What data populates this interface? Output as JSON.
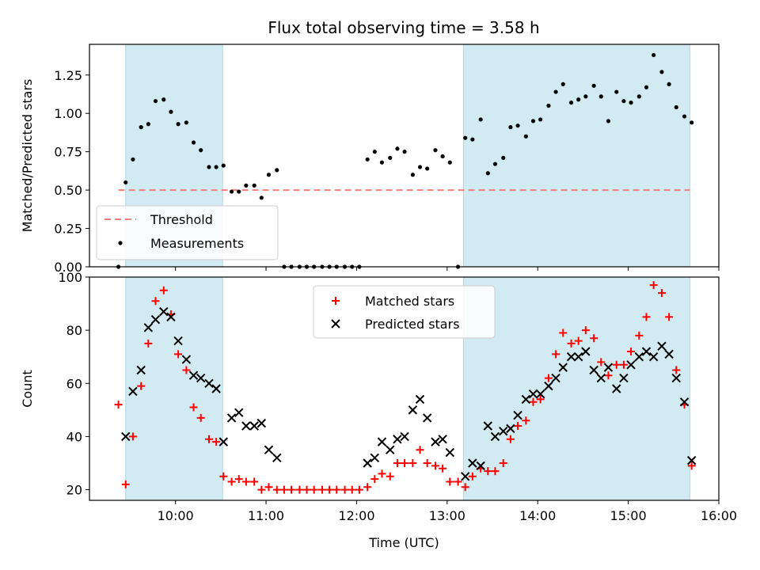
{
  "title": "Flux total observing time = 3.58 h",
  "colors": {
    "shade": "#add8e6",
    "threshold": "#f08080",
    "measurement": "#000000",
    "matched": "#ff0000",
    "predicted": "#000000"
  },
  "chart_data": [
    {
      "type": "scatter",
      "ylabel": "Matched/Predicted stars",
      "ylim": [
        0,
        1.45
      ],
      "xlim": [
        9.05,
        16.0
      ],
      "yticks": [
        0,
        0.25,
        0.5,
        0.75,
        1.0,
        1.25
      ],
      "ytick_labels": [
        "0.00",
        "0.25",
        "0.50",
        "0.75",
        "1.00",
        "1.25"
      ],
      "shaded_intervals": [
        [
          9.45,
          10.52
        ],
        [
          13.18,
          15.68
        ]
      ],
      "threshold": {
        "name": "Threshold",
        "value": 0.5,
        "x_range": [
          9.37,
          15.68
        ]
      },
      "legend": {
        "placement": "lower-left",
        "entries": [
          "Threshold",
          "Measurements"
        ]
      },
      "series": [
        {
          "name": "Measurements",
          "x": [
            9.37,
            9.45,
            9.53,
            9.62,
            9.7,
            9.78,
            9.87,
            9.95,
            10.03,
            10.12,
            10.2,
            10.28,
            10.37,
            10.45,
            10.53,
            10.62,
            10.7,
            10.78,
            10.87,
            10.95,
            11.03,
            11.12,
            11.2,
            11.28,
            11.37,
            11.45,
            11.53,
            11.62,
            11.7,
            11.78,
            11.87,
            11.95,
            12.03,
            12.12,
            12.2,
            12.28,
            12.37,
            12.45,
            12.53,
            12.62,
            12.7,
            12.78,
            12.87,
            12.95,
            13.03,
            13.12,
            13.2,
            13.28,
            13.37,
            13.45,
            13.53,
            13.62,
            13.7,
            13.78,
            13.87,
            13.95,
            14.03,
            14.12,
            14.2,
            14.28,
            14.37,
            14.45,
            14.53,
            14.62,
            14.7,
            14.78,
            14.87,
            14.95,
            15.03,
            15.12,
            15.2,
            15.28,
            15.37,
            15.45,
            15.53,
            15.62,
            15.7
          ],
          "y": [
            0.0,
            0.55,
            0.7,
            0.91,
            0.93,
            1.08,
            1.09,
            1.01,
            0.93,
            0.94,
            0.81,
            0.76,
            0.65,
            0.65,
            0.66,
            0.49,
            0.49,
            0.53,
            0.53,
            0.45,
            0.6,
            0.63,
            0.0,
            0.0,
            0.0,
            0.0,
            0.0,
            0.0,
            0.0,
            0.0,
            0.0,
            0.0,
            0.0,
            0.7,
            0.75,
            0.68,
            0.71,
            0.77,
            0.75,
            0.6,
            0.65,
            0.64,
            0.76,
            0.72,
            0.68,
            0.0,
            0.84,
            0.83,
            0.96,
            0.61,
            0.67,
            0.71,
            0.91,
            0.92,
            0.85,
            0.95,
            0.96,
            1.05,
            1.14,
            1.19,
            1.07,
            1.09,
            1.11,
            1.18,
            1.11,
            0.95,
            1.14,
            1.08,
            1.07,
            1.11,
            1.17,
            1.38,
            1.27,
            1.19,
            1.04,
            0.98,
            0.94
          ]
        }
      ]
    },
    {
      "type": "scatter",
      "xlabel": "Time (UTC)",
      "ylabel": "Count",
      "ylim": [
        16,
        100
      ],
      "xlim": [
        9.05,
        16.0
      ],
      "yticks": [
        20,
        40,
        60,
        80,
        100
      ],
      "ytick_labels": [
        "20",
        "40",
        "60",
        "80",
        "100"
      ],
      "xticks": [
        10,
        11,
        12,
        13,
        14,
        15,
        16
      ],
      "xtick_labels": [
        "10:00",
        "11:00",
        "12:00",
        "13:00",
        "14:00",
        "15:00",
        "16:00"
      ],
      "shaded_intervals": [
        [
          9.45,
          10.52
        ],
        [
          13.18,
          15.68
        ]
      ],
      "legend": {
        "placement": "upper-center",
        "entries": [
          "Matched stars",
          "Predicted stars"
        ]
      },
      "series": [
        {
          "name": "Matched stars",
          "marker": "plus",
          "x": [
            9.37,
            9.45,
            9.53,
            9.62,
            9.7,
            9.78,
            9.87,
            9.95,
            10.03,
            10.12,
            10.2,
            10.28,
            10.37,
            10.45,
            10.53,
            10.62,
            10.7,
            10.78,
            10.87,
            10.95,
            11.03,
            11.12,
            11.2,
            11.28,
            11.37,
            11.45,
            11.53,
            11.62,
            11.7,
            11.78,
            11.87,
            11.95,
            12.03,
            12.12,
            12.2,
            12.28,
            12.37,
            12.45,
            12.53,
            12.62,
            12.7,
            12.78,
            12.87,
            12.95,
            13.03,
            13.12,
            13.2,
            13.28,
            13.37,
            13.45,
            13.53,
            13.62,
            13.7,
            13.78,
            13.87,
            13.95,
            14.03,
            14.12,
            14.2,
            14.28,
            14.37,
            14.45,
            14.53,
            14.62,
            14.7,
            14.78,
            14.87,
            14.95,
            15.03,
            15.12,
            15.2,
            15.28,
            15.37,
            15.45,
            15.53,
            15.62,
            15.7
          ],
          "y": [
            52,
            22,
            40,
            59,
            75,
            91,
            95,
            86,
            71,
            65,
            51,
            47,
            39,
            38,
            25,
            23,
            24,
            23,
            23,
            20,
            21,
            20,
            20,
            20,
            20,
            20,
            20,
            20,
            20,
            20,
            20,
            20,
            20,
            21,
            24,
            26,
            25,
            30,
            30,
            30,
            35,
            30,
            29,
            28,
            23,
            23,
            21,
            25,
            28,
            27,
            27,
            30,
            39,
            44,
            46,
            53,
            54,
            62,
            71,
            79,
            75,
            76,
            80,
            77,
            68,
            63,
            67,
            67,
            72,
            78,
            85,
            97,
            94,
            85,
            65,
            52,
            29
          ]
        },
        {
          "name": "Predicted stars",
          "marker": "x",
          "x": [
            9.45,
            9.53,
            9.62,
            9.7,
            9.78,
            9.87,
            9.95,
            10.03,
            10.12,
            10.2,
            10.28,
            10.37,
            10.45,
            10.53,
            10.62,
            10.7,
            10.78,
            10.87,
            10.95,
            11.03,
            11.12,
            12.12,
            12.2,
            12.28,
            12.37,
            12.45,
            12.53,
            12.62,
            12.7,
            12.78,
            12.87,
            12.95,
            13.03,
            13.2,
            13.28,
            13.37,
            13.45,
            13.53,
            13.62,
            13.7,
            13.78,
            13.87,
            13.95,
            14.03,
            14.12,
            14.2,
            14.28,
            14.37,
            14.45,
            14.53,
            14.62,
            14.7,
            14.78,
            14.87,
            14.95,
            15.03,
            15.12,
            15.2,
            15.28,
            15.37,
            15.45,
            15.53,
            15.62,
            15.7
          ],
          "y": [
            40,
            57,
            65,
            81,
            84,
            87,
            85,
            76,
            69,
            63,
            62,
            60,
            58,
            38,
            47,
            49,
            44,
            44,
            45,
            35,
            32,
            30,
            32,
            38,
            35,
            39,
            40,
            50,
            54,
            47,
            38,
            39,
            34,
            25,
            30,
            29,
            44,
            40,
            42,
            43,
            48,
            54,
            56,
            56,
            59,
            62,
            66,
            70,
            70,
            72,
            65,
            62,
            66,
            58,
            62,
            67,
            70,
            72,
            70,
            74,
            71,
            62,
            53,
            31
          ]
        }
      ]
    }
  ]
}
